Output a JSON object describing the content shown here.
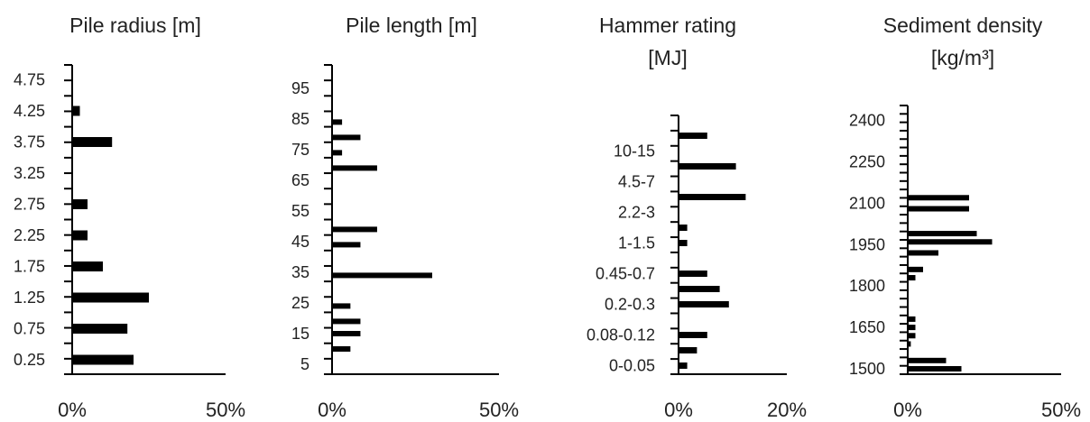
{
  "chart_data": [
    {
      "type": "bar",
      "orientation": "horizontal",
      "title_lines": [
        "Pile radius [m]"
      ],
      "y_labels": [
        "0.25",
        "0.75",
        "1.25",
        "1.75",
        "2.25",
        "2.75",
        "3.25",
        "3.75",
        "4.25",
        "4.75"
      ],
      "x_tick_labels": [
        "0%",
        "50%"
      ],
      "xlim": [
        0,
        50
      ],
      "bars": [
        {
          "y": 0.25,
          "value": 20
        },
        {
          "y": 0.75,
          "value": 18
        },
        {
          "y": 1.25,
          "value": 25
        },
        {
          "y": 1.75,
          "value": 10
        },
        {
          "y": 2.25,
          "value": 5
        },
        {
          "y": 2.75,
          "value": 5
        },
        {
          "y": 3.75,
          "value": 13
        },
        {
          "y": 4.25,
          "value": 2.5
        }
      ]
    },
    {
      "type": "bar",
      "orientation": "horizontal",
      "title_lines": [
        "Pile length [m]"
      ],
      "y_labels": [
        "5",
        "15",
        "25",
        "35",
        "45",
        "55",
        "65",
        "75",
        "85",
        "95"
      ],
      "x_tick_labels": [
        "0%",
        "50%"
      ],
      "xlim": [
        0,
        50
      ],
      "bars": [
        {
          "y": 10,
          "value": 5.5
        },
        {
          "y": 15,
          "value": 8.5
        },
        {
          "y": 19,
          "value": 8.5
        },
        {
          "y": 24,
          "value": 5.5
        },
        {
          "y": 34,
          "value": 30
        },
        {
          "y": 44,
          "value": 8.5
        },
        {
          "y": 49,
          "value": 13.5
        },
        {
          "y": 69,
          "value": 13.5
        },
        {
          "y": 74,
          "value": 3
        },
        {
          "y": 79,
          "value": 8.5
        },
        {
          "y": 84,
          "value": 3
        }
      ]
    },
    {
      "type": "bar",
      "orientation": "horizontal",
      "title_lines": [
        "Hammer rating",
        "[MJ]"
      ],
      "y_labels": [
        "0-0.05",
        "0.08-0.12",
        "0.2-0.3",
        "0.45-0.7",
        "1-1.5",
        "2.2-3",
        "4.5-7",
        "10-15"
      ],
      "x_tick_labels": [
        "0%",
        "20%"
      ],
      "xlim": [
        0,
        20
      ],
      "bars": [
        {
          "y": 0.5,
          "value": 1.6
        },
        {
          "y": 1.5,
          "value": 3.4
        },
        {
          "y": 2.5,
          "value": 5.3
        },
        {
          "y": 4.5,
          "value": 9.3
        },
        {
          "y": 5.5,
          "value": 7.6
        },
        {
          "y": 6.5,
          "value": 5.3
        },
        {
          "y": 8.5,
          "value": 1.6
        },
        {
          "y": 9.5,
          "value": 1.6
        },
        {
          "y": 11.5,
          "value": 12.4
        },
        {
          "y": 13.5,
          "value": 10.6
        },
        {
          "y": 15.5,
          "value": 5.3
        }
      ]
    },
    {
      "type": "bar",
      "orientation": "horizontal",
      "title_lines": [
        "Sediment density",
        "[kg/m³]"
      ],
      "y_labels": [
        "1500",
        "1650",
        "1800",
        "1950",
        "2100",
        "2250",
        "2400"
      ],
      "x_tick_labels": [
        "0%",
        "50%"
      ],
      "xlim": [
        0,
        50
      ],
      "bars": [
        {
          "y": 1500,
          "value": 17.5
        },
        {
          "y": 1530,
          "value": 12.5
        },
        {
          "y": 1590,
          "value": 1
        },
        {
          "y": 1620,
          "value": 2.5
        },
        {
          "y": 1650,
          "value": 2.5
        },
        {
          "y": 1680,
          "value": 2.5
        },
        {
          "y": 1830,
          "value": 2.5
        },
        {
          "y": 1860,
          "value": 5
        },
        {
          "y": 1920,
          "value": 10
        },
        {
          "y": 1960,
          "value": 27.5
        },
        {
          "y": 1990,
          "value": 22.5
        },
        {
          "y": 2080,
          "value": 20
        },
        {
          "y": 2120,
          "value": 20
        }
      ]
    }
  ]
}
